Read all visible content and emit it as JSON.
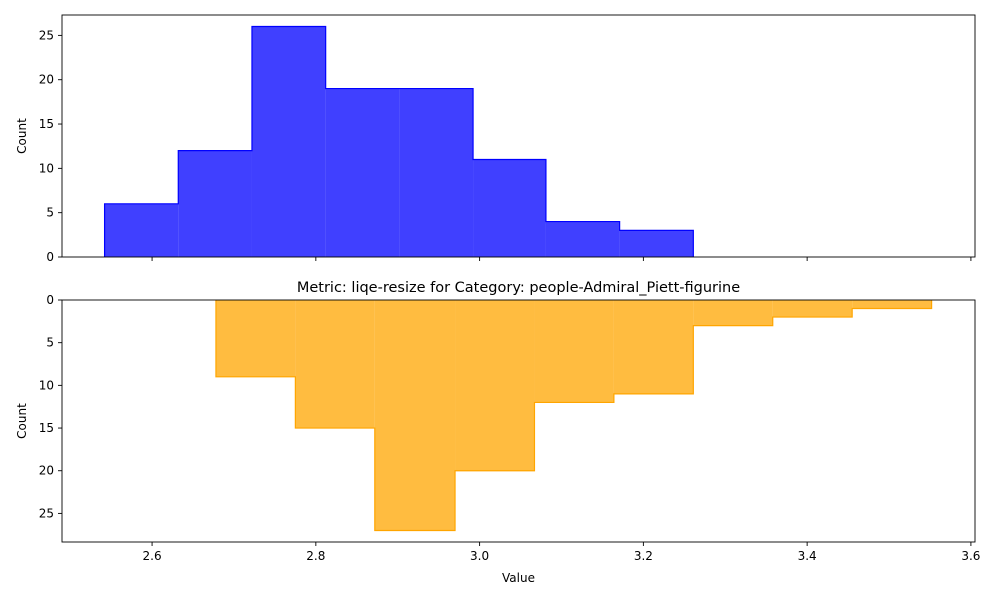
{
  "chart_data": [
    {
      "type": "histogram",
      "title": "",
      "xlabel": "",
      "ylabel": "Count",
      "color": "#0000ff",
      "bin_edges": [
        2.542,
        2.632,
        2.722,
        2.812,
        2.902,
        2.992,
        3.081,
        3.171,
        3.261
      ],
      "counts": [
        6,
        12,
        26,
        19,
        19,
        11,
        4,
        3
      ],
      "xlim": [
        2.49,
        3.605
      ],
      "ylim": [
        0,
        27.3
      ],
      "xticks": [
        2.6,
        2.8,
        3.0,
        3.2,
        3.4,
        3.6
      ],
      "xtick_labels_shown": false,
      "yticks": [
        0,
        5,
        10,
        15,
        20,
        25
      ],
      "ytick_labels": [
        "0",
        "5",
        "10",
        "15",
        "20",
        "25"
      ],
      "y_inverted": false
    },
    {
      "type": "histogram",
      "title": "Metric: liqe-resize for Category: people-Admiral_Piett-figurine",
      "xlabel": "Value",
      "ylabel": "Count",
      "color": "#ffa500",
      "bin_edges": [
        2.678,
        2.775,
        2.872,
        2.97,
        3.067,
        3.164,
        3.261,
        3.358,
        3.455,
        3.552
      ],
      "counts": [
        9,
        15,
        27,
        20,
        12,
        11,
        3,
        2,
        1
      ],
      "xlim": [
        2.49,
        3.605
      ],
      "ylim": [
        0,
        28.35
      ],
      "xticks": [
        2.6,
        2.8,
        3.0,
        3.2,
        3.4,
        3.6
      ],
      "xtick_labels": [
        "2.6",
        "2.8",
        "3.0",
        "3.2",
        "3.4",
        "3.6"
      ],
      "yticks": [
        0,
        5,
        10,
        15,
        20,
        25
      ],
      "ytick_labels": [
        "0",
        "5",
        "10",
        "15",
        "20",
        "25"
      ],
      "y_inverted": true
    }
  ]
}
